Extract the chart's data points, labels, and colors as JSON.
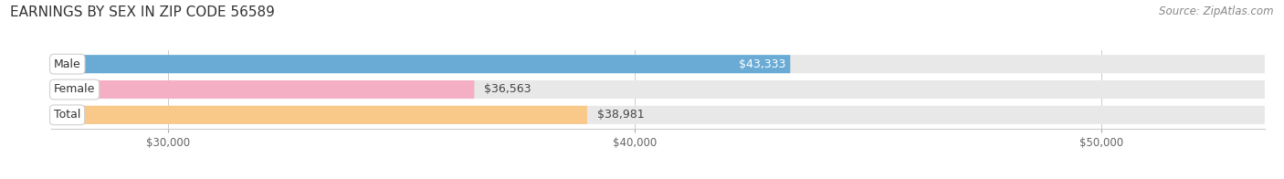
{
  "title": "EARNINGS BY SEX IN ZIP CODE 56589",
  "source": "Source: ZipAtlas.com",
  "categories": [
    "Male",
    "Female",
    "Total"
  ],
  "values": [
    43333,
    36563,
    38981
  ],
  "bar_colors": [
    "#6aabd6",
    "#f4afc4",
    "#f9c98a"
  ],
  "bar_bg_color": "#e8e8e8",
  "xmin": 27500,
  "xmax": 53500,
  "xticks": [
    30000,
    40000,
    50000
  ],
  "xtick_labels": [
    "$30,000",
    "$40,000",
    "$50,000"
  ],
  "title_fontsize": 11,
  "source_fontsize": 8.5,
  "bar_height": 0.72,
  "bar_label_fontsize": 9,
  "cat_label_fontsize": 9,
  "value_label_format": "${:,}"
}
